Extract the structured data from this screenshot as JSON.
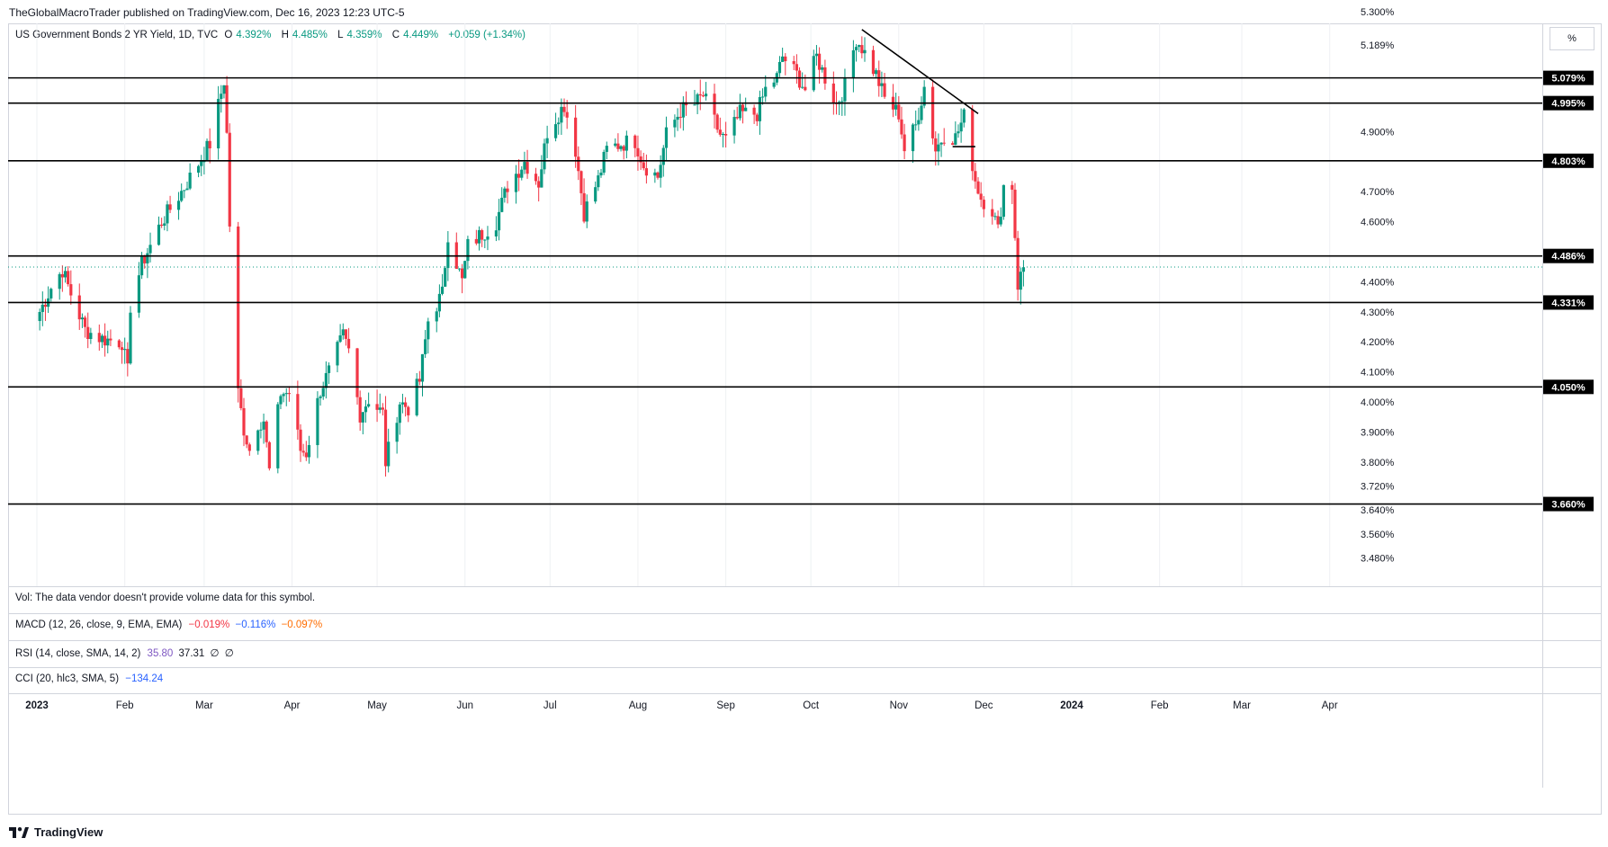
{
  "header": {
    "publisher_line": "TheGlobalMacroTrader published on TradingView.com, Dec 16, 2023 12:23 UTC-5"
  },
  "legend": {
    "symbol": "US Government Bonds 2 YR Yield, 1D, TVC",
    "o_label": "O",
    "o": "4.392%",
    "h_label": "H",
    "h": "4.485%",
    "l_label": "L",
    "l": "4.359%",
    "c_label": "C",
    "c": "4.449%",
    "change": "+0.059 (+1.34%)"
  },
  "unit_button": "%",
  "colors": {
    "up": "#089981",
    "down": "#f23645",
    "level": "#000000",
    "grid": "#d1d4dc",
    "macd_line": "#f23645",
    "macd_signal": "#2962ff",
    "macd_hist": "#ff6d00",
    "rsi": "#7e57c2",
    "cci": "#2962ff"
  },
  "panes": {
    "vol": {
      "text": "Vol: The data vendor doesn't provide volume data for this symbol."
    },
    "macd": {
      "label": "MACD (12, 26, close, 9, EMA, EMA)",
      "v1": "−0.019%",
      "v2": "−0.116%",
      "v3": "−0.097%"
    },
    "rsi": {
      "label": "RSI (14, close, SMA, 14, 2)",
      "v1": "35.80",
      "v2": "37.31",
      "v3": "∅",
      "v4": "∅"
    },
    "cci": {
      "label": "CCI (20, hlc3, SMA, 5)",
      "v1": "−134.24"
    }
  },
  "footer": {
    "brand": "TradingView"
  },
  "chart_data": {
    "type": "candlestick",
    "title": "US Government Bonds 2 YR Yield, 1D, TVC",
    "y_unit": "%",
    "ylim": [
      3.42,
      5.38
    ],
    "y_ticks": [
      "5.300%",
      "5.189%",
      "4.900%",
      "4.700%",
      "4.600%",
      "4.400%",
      "4.300%",
      "4.200%",
      "4.100%",
      "4.000%",
      "3.900%",
      "3.800%",
      "3.720%",
      "3.640%",
      "3.560%",
      "3.480%"
    ],
    "x_labels": [
      "2023",
      "Feb",
      "Mar",
      "Apr",
      "May",
      "Jun",
      "Jul",
      "Aug",
      "Sep",
      "Oct",
      "Nov",
      "Dec",
      "2024",
      "Feb",
      "Mar",
      "Apr"
    ],
    "horizontal_levels": [
      {
        "value": 5.079,
        "label": "5.079%"
      },
      {
        "value": 4.995,
        "label": "4.995%"
      },
      {
        "value": 4.803,
        "label": "4.803%"
      },
      {
        "value": 4.486,
        "label": "4.486%"
      },
      {
        "value": 4.331,
        "label": "4.331%"
      },
      {
        "value": 4.05,
        "label": "4.050%"
      },
      {
        "value": 3.66,
        "label": "3.660%"
      }
    ],
    "last_price": 4.449,
    "trendline": {
      "from": {
        "date": "2023-10-19",
        "value": 5.24
      },
      "to": {
        "date": "2023-11-29",
        "value": 4.96
      }
    },
    "short_segment": {
      "from": {
        "date": "2023-11-20",
        "value": 4.85
      },
      "to": {
        "date": "2023-11-28",
        "value": 4.85
      }
    },
    "candles_ohlc_anchor_closes": [
      [
        "2023-01-02",
        4.3
      ],
      [
        "2023-01-06",
        4.38
      ],
      [
        "2023-01-10",
        4.44
      ],
      [
        "2023-01-13",
        4.36
      ],
      [
        "2023-01-18",
        4.24
      ],
      [
        "2023-01-24",
        4.21
      ],
      [
        "2023-01-31",
        4.2
      ],
      [
        "2023-02-02",
        4.1
      ],
      [
        "2023-02-03",
        4.32
      ],
      [
        "2023-02-07",
        4.46
      ],
      [
        "2023-02-14",
        4.6
      ],
      [
        "2023-02-21",
        4.7
      ],
      [
        "2023-02-28",
        4.81
      ],
      [
        "2023-03-03",
        4.86
      ],
      [
        "2023-03-08",
        5.07
      ],
      [
        "2023-03-09",
        4.89
      ],
      [
        "2023-03-10",
        4.59
      ],
      [
        "2023-03-13",
        4.03
      ],
      [
        "2023-03-15",
        3.91
      ],
      [
        "2023-03-17",
        3.84
      ],
      [
        "2023-03-20",
        3.93
      ],
      [
        "2023-03-22",
        3.94
      ],
      [
        "2023-03-24",
        3.77
      ],
      [
        "2023-03-28",
        4.03
      ],
      [
        "2023-03-31",
        4.03
      ],
      [
        "2023-04-04",
        3.84
      ],
      [
        "2023-04-06",
        3.83
      ],
      [
        "2023-04-11",
        4.04
      ],
      [
        "2023-04-14",
        4.1
      ],
      [
        "2023-04-19",
        4.22
      ],
      [
        "2023-04-21",
        4.17
      ],
      [
        "2023-04-25",
        3.96
      ],
      [
        "2023-04-28",
        4.01
      ],
      [
        "2023-05-03",
        3.96
      ],
      [
        "2023-05-04",
        3.8
      ],
      [
        "2023-05-09",
        4.0
      ],
      [
        "2023-05-12",
        3.98
      ],
      [
        "2023-05-16",
        4.07
      ],
      [
        "2023-05-19",
        4.27
      ],
      [
        "2023-05-24",
        4.36
      ],
      [
        "2023-05-26",
        4.56
      ],
      [
        "2023-05-31",
        4.4
      ],
      [
        "2023-06-02",
        4.52
      ],
      [
        "2023-06-07",
        4.56
      ],
      [
        "2023-06-12",
        4.6
      ],
      [
        "2023-06-16",
        4.72
      ],
      [
        "2023-06-22",
        4.8
      ],
      [
        "2023-06-27",
        4.73
      ],
      [
        "2023-06-30",
        4.9
      ],
      [
        "2023-07-06",
        4.99
      ],
      [
        "2023-07-10",
        4.84
      ],
      [
        "2023-07-13",
        4.63
      ],
      [
        "2023-07-18",
        4.74
      ],
      [
        "2023-07-21",
        4.84
      ],
      [
        "2023-07-26",
        4.86
      ],
      [
        "2023-07-31",
        4.87
      ],
      [
        "2023-08-03",
        4.79
      ],
      [
        "2023-08-08",
        4.75
      ],
      [
        "2023-08-11",
        4.89
      ],
      [
        "2023-08-16",
        4.97
      ],
      [
        "2023-08-21",
        4.99
      ],
      [
        "2023-08-24",
        5.02
      ],
      [
        "2023-08-30",
        4.89
      ],
      [
        "2023-09-01",
        4.87
      ],
      [
        "2023-09-06",
        4.96
      ],
      [
        "2023-09-12",
        4.96
      ],
      [
        "2023-09-15",
        5.04
      ],
      [
        "2023-09-19",
        5.08
      ],
      [
        "2023-09-21",
        5.15
      ],
      [
        "2023-09-26",
        5.09
      ],
      [
        "2023-09-29",
        5.04
      ],
      [
        "2023-10-03",
        5.15
      ],
      [
        "2023-10-06",
        5.08
      ],
      [
        "2023-10-10",
        4.99
      ],
      [
        "2023-10-13",
        5.05
      ],
      [
        "2023-10-17",
        5.21
      ],
      [
        "2023-10-19",
        5.18
      ],
      [
        "2023-10-24",
        5.09
      ],
      [
        "2023-10-27",
        5.01
      ],
      [
        "2023-11-01",
        4.96
      ],
      [
        "2023-11-03",
        4.84
      ],
      [
        "2023-11-07",
        4.92
      ],
      [
        "2023-11-10",
        5.05
      ],
      [
        "2023-11-14",
        4.84
      ],
      [
        "2023-11-17",
        4.89
      ],
      [
        "2023-11-21",
        4.88
      ],
      [
        "2023-11-24",
        4.95
      ],
      [
        "2023-11-28",
        4.74
      ],
      [
        "2023-11-30",
        4.68
      ],
      [
        "2023-12-04",
        4.64
      ],
      [
        "2023-12-06",
        4.57
      ],
      [
        "2023-12-08",
        4.72
      ],
      [
        "2023-12-11",
        4.72
      ],
      [
        "2023-12-13",
        4.39
      ],
      [
        "2023-12-15",
        4.449
      ]
    ]
  }
}
